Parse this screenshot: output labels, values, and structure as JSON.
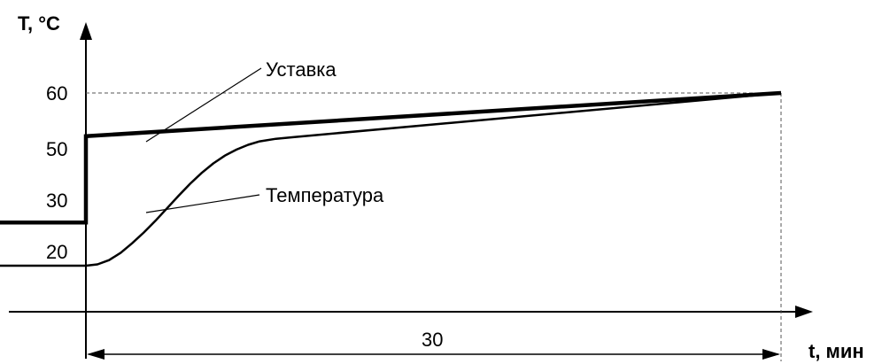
{
  "chart_data": {
    "type": "line",
    "xlabel": "t, мин",
    "ylabel": "T, °C",
    "yticks": [
      "20",
      "30",
      "50",
      "60"
    ],
    "duration_label": "30",
    "series": [
      {
        "name": "Уставка",
        "points": [
          [
            -5,
            30
          ],
          [
            0,
            30
          ],
          [
            0,
            50
          ],
          [
            30,
            60
          ]
        ]
      },
      {
        "name": "Температура",
        "points": [
          [
            -5,
            20
          ],
          [
            0,
            20
          ],
          [
            0.5,
            20.3
          ],
          [
            1,
            21.3
          ],
          [
            1.5,
            23
          ],
          [
            2,
            25.2
          ],
          [
            2.5,
            27.7
          ],
          [
            3,
            30.4
          ],
          [
            3.5,
            33.3
          ],
          [
            4,
            36.2
          ],
          [
            4.5,
            39
          ],
          [
            5,
            41.5
          ],
          [
            5.5,
            43.7
          ],
          [
            6,
            45.5
          ],
          [
            6.5,
            46.9
          ],
          [
            7,
            48
          ],
          [
            7.5,
            48.8
          ],
          [
            8.2,
            49.4
          ],
          [
            9,
            49.8
          ],
          [
            30,
            60
          ]
        ]
      }
    ],
    "colors": {
      "line": "#000000",
      "guide": "#555555"
    }
  }
}
